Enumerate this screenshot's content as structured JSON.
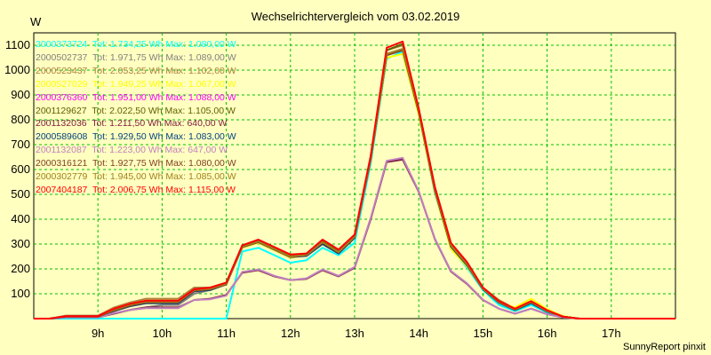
{
  "chart_data": {
    "type": "line",
    "title": "Wechselrichtervergleich vom 03.02.2019",
    "ylabel": "W",
    "footer": "SunnyReport pinxit",
    "ylim": [
      0,
      1150
    ],
    "xlim": [
      8.0,
      18.0
    ],
    "y_ticks": [
      100,
      200,
      300,
      400,
      500,
      600,
      700,
      800,
      900,
      1000,
      1100
    ],
    "x_ticks": [
      {
        "v": 9,
        "label": "9h"
      },
      {
        "v": 10,
        "label": "10h"
      },
      {
        "v": 11,
        "label": "11h"
      },
      {
        "v": 12,
        "label": "12h"
      },
      {
        "v": 13,
        "label": "13h"
      },
      {
        "v": 14,
        "label": "14h"
      },
      {
        "v": 15,
        "label": "15h"
      },
      {
        "v": 16,
        "label": "16h"
      },
      {
        "v": 17,
        "label": "17h"
      }
    ],
    "grid": true,
    "x": [
      8.0,
      8.25,
      8.5,
      8.75,
      9.0,
      9.25,
      9.5,
      9.75,
      10.0,
      10.25,
      10.5,
      10.75,
      11.0,
      11.25,
      11.5,
      11.75,
      12.0,
      12.25,
      12.5,
      12.75,
      13.0,
      13.25,
      13.5,
      13.75,
      14.0,
      14.25,
      14.5,
      14.75,
      15.0,
      15.25,
      15.5,
      15.75,
      16.0,
      16.25,
      16.5,
      16.75,
      17.0,
      17.25,
      17.5,
      17.75,
      18.0
    ],
    "series": [
      {
        "name": "2000373724",
        "legend": "2000373724  Tot: 1.734,25 Wh Max: 1.080,00 W",
        "color": "#00ffff",
        "values": [
          0,
          0,
          0,
          0,
          0,
          0,
          0,
          0,
          0,
          0,
          0,
          0,
          0,
          270,
          285,
          255,
          225,
          235,
          285,
          255,
          305,
          625,
          1045,
          1075,
          825,
          505,
          285,
          205,
          115,
          55,
          30,
          55,
          25,
          8,
          0,
          0,
          0,
          0,
          0,
          0,
          0
        ]
      },
      {
        "name": "2000502737",
        "legend": "2000502737  Tot: 1.971,75 Wh Max: 1.089,00 W",
        "color": "#808080",
        "values": [
          0,
          0,
          8,
          8,
          8,
          20,
          35,
          45,
          55,
          55,
          100,
          115,
          140,
          295,
          305,
          275,
          245,
          255,
          305,
          265,
          330,
          645,
          1065,
          1085,
          835,
          525,
          300,
          220,
          120,
          70,
          35,
          65,
          30,
          8,
          0,
          0,
          0,
          0,
          0,
          0,
          0
        ]
      },
      {
        "name": "2000523437",
        "legend": "2000523437  Tot: 2.053,25 Wh Max: 1.102,00 W",
        "color": "#b08040",
        "values": [
          0,
          0,
          12,
          12,
          12,
          45,
          65,
          80,
          80,
          80,
          125,
          125,
          145,
          290,
          315,
          285,
          255,
          260,
          315,
          275,
          335,
          650,
          1080,
          1100,
          840,
          530,
          305,
          225,
          125,
          75,
          40,
          70,
          32,
          8,
          0,
          0,
          0,
          0,
          0,
          0,
          0
        ]
      },
      {
        "name": "2000527029",
        "legend": "2000527029  Tot: 1.949,25 Wh Max: 1.067,00 W",
        "color": "#ffff00",
        "values": [
          0,
          0,
          10,
          10,
          10,
          40,
          60,
          72,
          72,
          72,
          115,
          120,
          140,
          285,
          305,
          275,
          245,
          255,
          305,
          270,
          325,
          640,
          1050,
          1065,
          820,
          510,
          280,
          210,
          120,
          65,
          45,
          80,
          38,
          10,
          0,
          0,
          0,
          0,
          0,
          0,
          0
        ]
      },
      {
        "name": "2000376360",
        "legend": "2000376360  Tot: 1.951,00 Wh Max: 1.088,00 W",
        "color": "#ff00ff",
        "values": [
          0,
          0,
          10,
          10,
          10,
          35,
          55,
          68,
          68,
          68,
          110,
          118,
          138,
          290,
          310,
          280,
          250,
          255,
          310,
          270,
          330,
          645,
          1065,
          1085,
          835,
          520,
          295,
          220,
          120,
          65,
          35,
          65,
          30,
          8,
          0,
          0,
          0,
          0,
          0,
          0,
          0
        ]
      },
      {
        "name": "2001129627",
        "legend": "2001129627  Tot: 2.022,50 Wh Max: 1.105,00 W",
        "color": "#606000",
        "values": [
          0,
          0,
          10,
          10,
          10,
          38,
          58,
          70,
          70,
          70,
          118,
          122,
          142,
          292,
          312,
          282,
          252,
          258,
          312,
          272,
          332,
          650,
          1080,
          1105,
          840,
          525,
          300,
          222,
          122,
          68,
          38,
          68,
          32,
          8,
          0,
          0,
          0,
          0,
          0,
          0,
          0
        ]
      },
      {
        "name": "2001132036",
        "legend": "2001132036  Tot: 1.211,50 Wh Max: 640,00 W",
        "color": "#802040",
        "values": [
          0,
          0,
          5,
          5,
          5,
          20,
          35,
          45,
          45,
          45,
          75,
          80,
          95,
          185,
          195,
          170,
          155,
          160,
          195,
          170,
          205,
          400,
          630,
          640,
          510,
          320,
          190,
          140,
          75,
          40,
          20,
          40,
          18,
          5,
          0,
          0,
          0,
          0,
          0,
          0,
          0
        ]
      },
      {
        "name": "2000589608",
        "legend": "2000589608  Tot: 1.929,50 Wh Max: 1.083,00 W",
        "color": "#004080",
        "values": [
          0,
          0,
          8,
          8,
          8,
          30,
          50,
          62,
          62,
          62,
          110,
          115,
          138,
          288,
          308,
          278,
          248,
          252,
          300,
          262,
          325,
          640,
          1060,
          1080,
          830,
          515,
          290,
          215,
          118,
          64,
          34,
          62,
          28,
          8,
          0,
          0,
          0,
          0,
          0,
          0,
          0
        ]
      },
      {
        "name": "2001132087",
        "legend": "2001132087  Tot: 1.223,00 Wh Max: 647,00 W",
        "color": "#c080c0",
        "values": [
          0,
          0,
          5,
          5,
          5,
          22,
          35,
          42,
          42,
          42,
          75,
          78,
          92,
          188,
          198,
          172,
          155,
          162,
          198,
          172,
          208,
          405,
          635,
          647,
          512,
          322,
          192,
          142,
          76,
          40,
          20,
          40,
          18,
          5,
          0,
          0,
          0,
          0,
          0,
          0,
          0
        ]
      },
      {
        "name": "2000316121",
        "legend": "2000316121  Tot: 1.927,75 Wh Max: 1.080,00 W",
        "color": "#804020",
        "values": [
          0,
          0,
          8,
          8,
          8,
          32,
          52,
          65,
          65,
          65,
          112,
          118,
          138,
          288,
          308,
          278,
          248,
          255,
          305,
          265,
          328,
          642,
          1060,
          1080,
          830,
          515,
          292,
          218,
          120,
          66,
          36,
          66,
          30,
          8,
          0,
          0,
          0,
          0,
          0,
          0,
          0
        ]
      },
      {
        "name": "2000302779",
        "legend": "2000302779  Tot: 1.945,00 Wh Max: 1.085,00 W",
        "color": "#a08020",
        "values": [
          0,
          0,
          10,
          10,
          10,
          36,
          56,
          68,
          68,
          68,
          115,
          120,
          140,
          290,
          310,
          280,
          250,
          256,
          308,
          268,
          330,
          645,
          1065,
          1085,
          835,
          520,
          295,
          220,
          120,
          66,
          36,
          66,
          30,
          8,
          0,
          0,
          0,
          0,
          0,
          0,
          0
        ]
      },
      {
        "name": "2007404187",
        "legend": "2007404187  Tot: 2.006,75 Wh Max: 1.115,00 W",
        "color": "#ff0000",
        "values": [
          0,
          0,
          10,
          10,
          10,
          40,
          60,
          72,
          72,
          72,
          118,
          125,
          145,
          295,
          318,
          288,
          258,
          262,
          318,
          278,
          338,
          655,
          1090,
          1115,
          845,
          530,
          305,
          228,
          125,
          70,
          40,
          70,
          34,
          8,
          0,
          0,
          0,
          0,
          0,
          0,
          0
        ]
      }
    ]
  }
}
